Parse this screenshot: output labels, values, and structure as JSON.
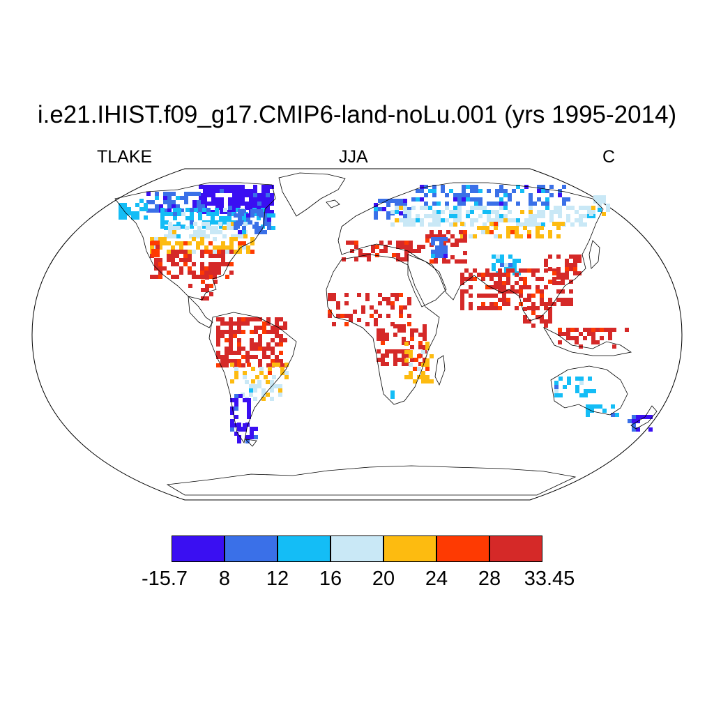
{
  "title": "i.e21.IHIST.f09_g17.CMIP6-land-noLu.001 (yrs 1995-2014)",
  "left_label": "TLAKE",
  "center_label": "JJA",
  "right_label": "C",
  "colorbar": {
    "colors": [
      "#3a0ff2",
      "#3a70e8",
      "#14bdf6",
      "#c9e8f6",
      "#fdbb10",
      "#fe3a02",
      "#d52928"
    ],
    "labels": [
      "-15.7",
      "8",
      "12",
      "16",
      "20",
      "24",
      "28",
      "33.45"
    ]
  },
  "map_colors": {
    "ocean": "#ffffff",
    "coastline": "#000000"
  }
}
